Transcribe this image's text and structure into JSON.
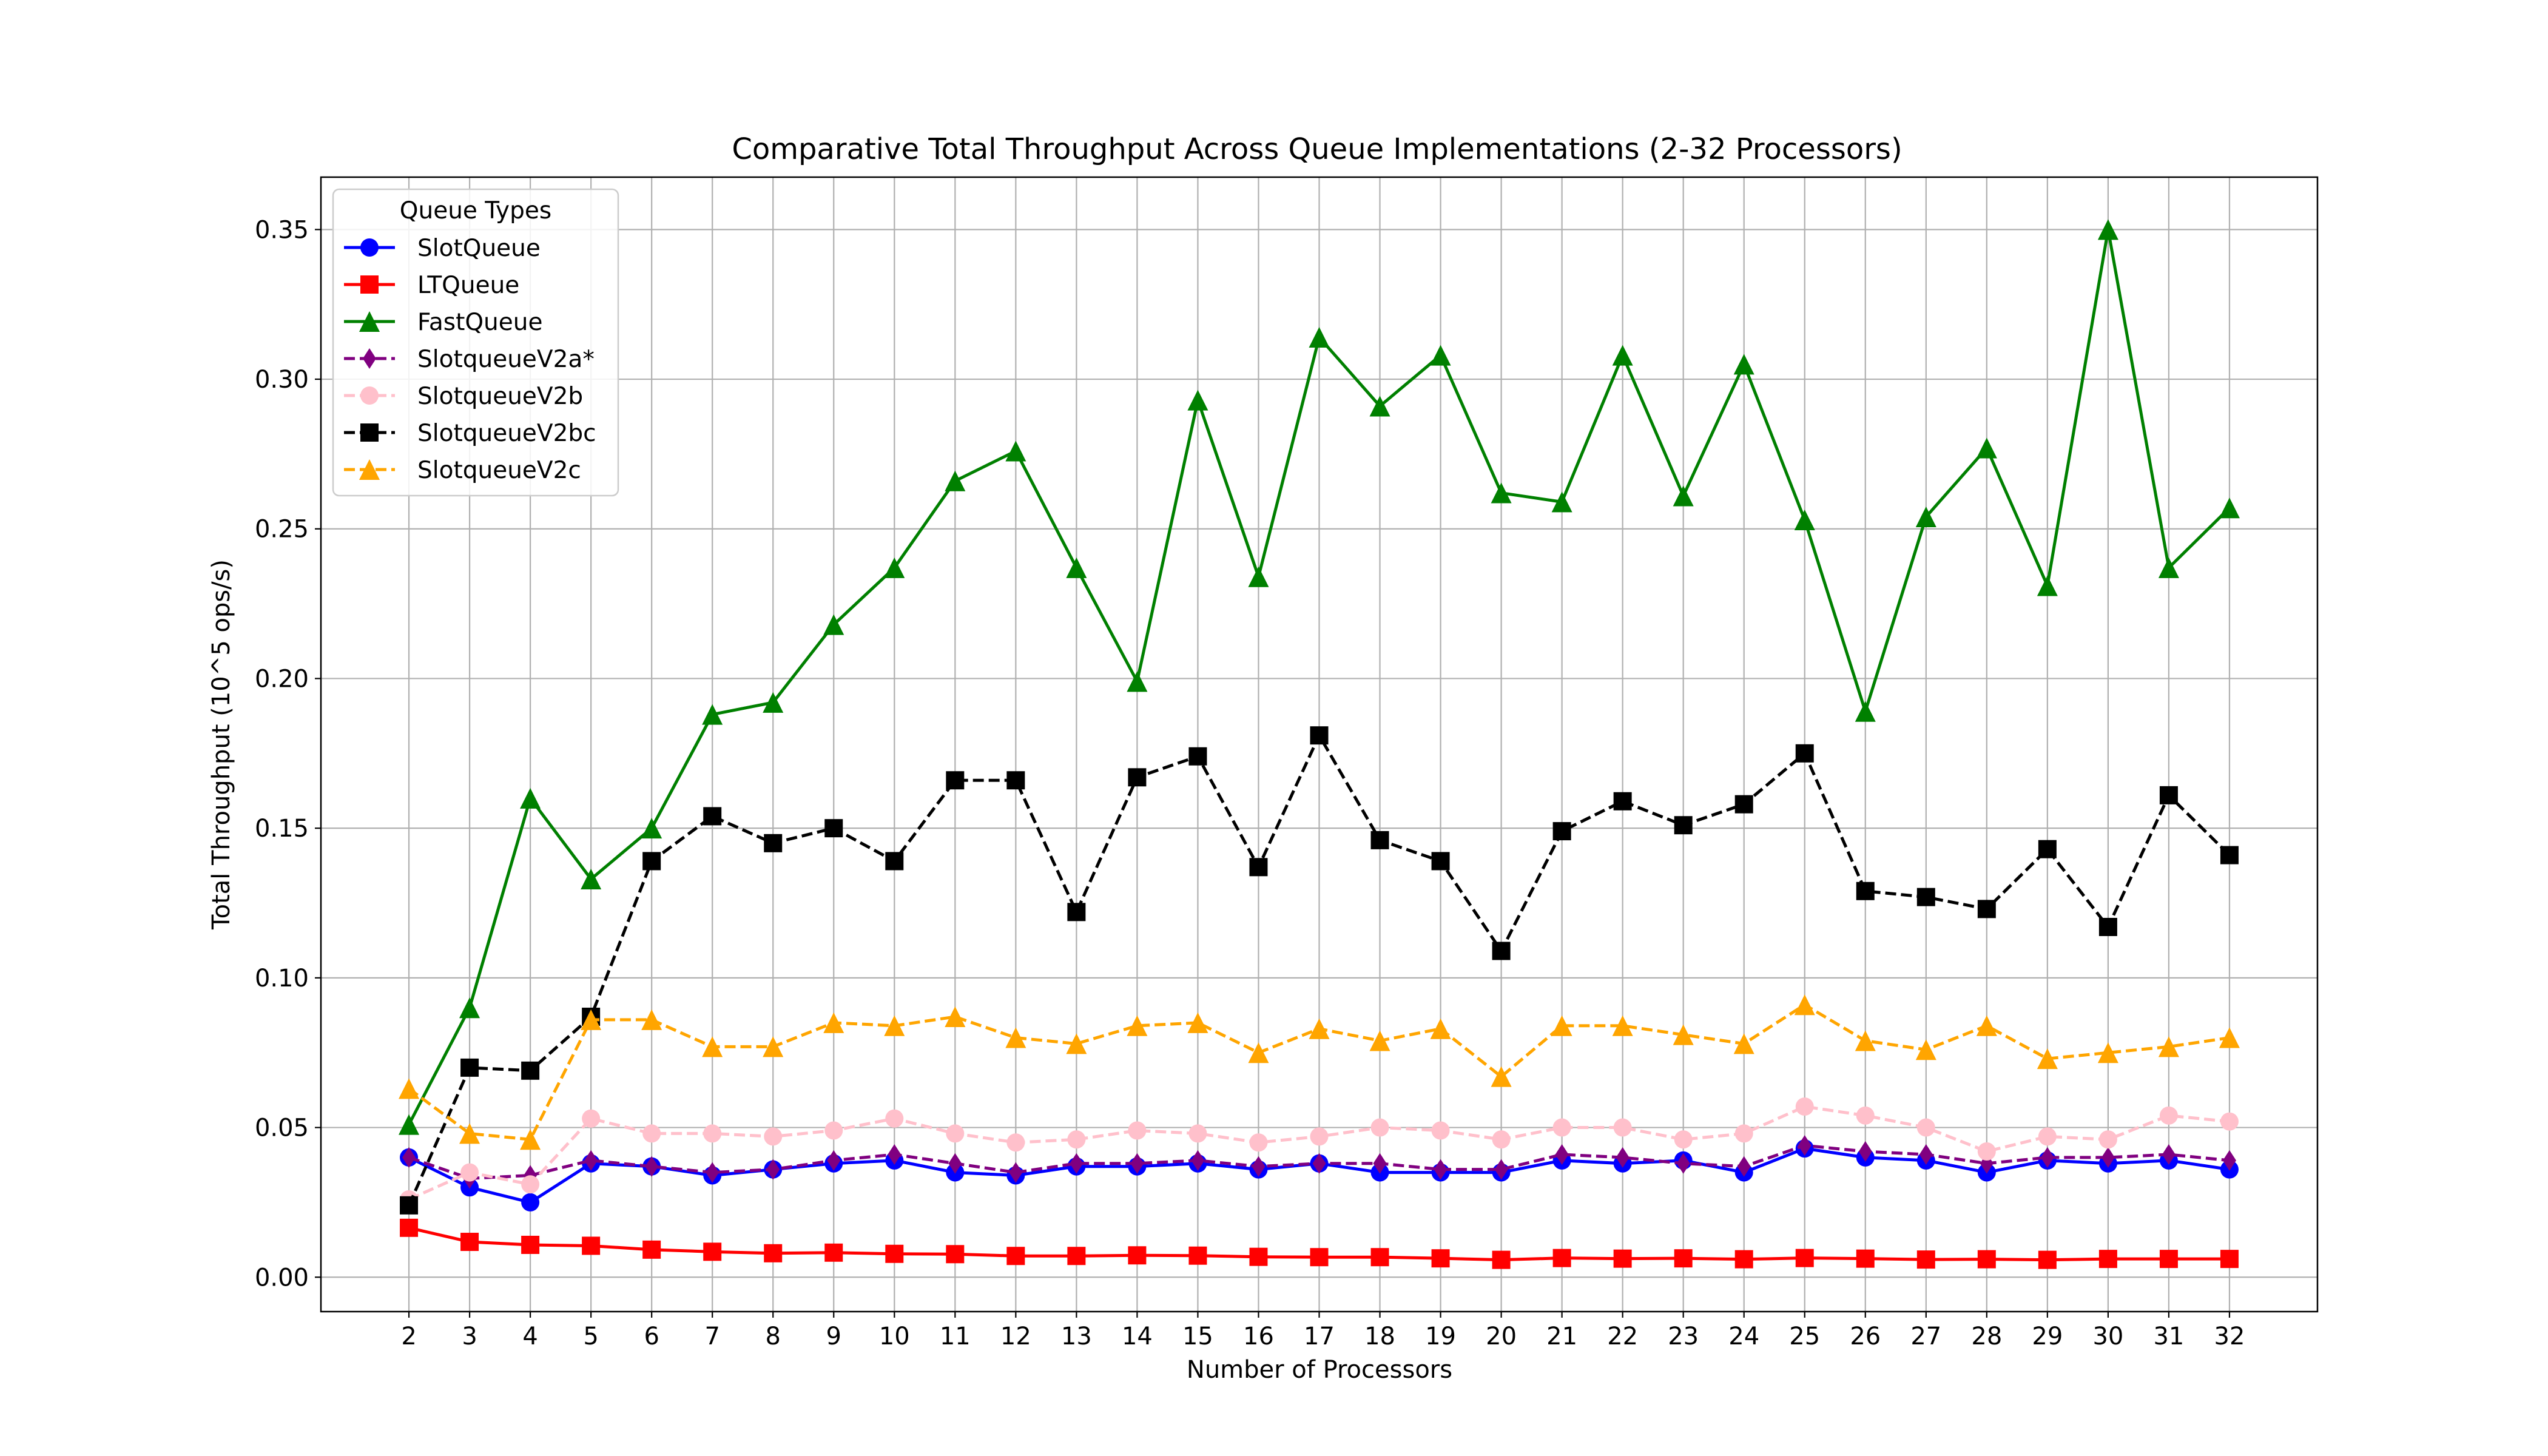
{
  "chart_data": {
    "type": "line",
    "title": "Comparative Total Throughput Across Queue Implementations (2-32 Processors)",
    "xlabel": "Number of Processors",
    "ylabel": "Total Throughput (10^5 ops/s)",
    "x": [
      2,
      3,
      4,
      5,
      6,
      7,
      8,
      9,
      10,
      11,
      12,
      13,
      14,
      15,
      16,
      17,
      18,
      19,
      20,
      21,
      22,
      23,
      24,
      25,
      26,
      27,
      28,
      29,
      30,
      31,
      32
    ],
    "xlim": [
      0.55,
      33.45
    ],
    "ylim": [
      -0.0115,
      0.3675
    ],
    "yticks": [
      0.0,
      0.05,
      0.1,
      0.15,
      0.2,
      0.25,
      0.3,
      0.35
    ],
    "ytick_labels": [
      "0.00",
      "0.05",
      "0.10",
      "0.15",
      "0.20",
      "0.25",
      "0.30",
      "0.35"
    ],
    "grid": true,
    "legend": {
      "title": "Queue Types",
      "placement": "upper-left"
    },
    "series": [
      {
        "name": "SlotQueue",
        "color": "#0000ff",
        "linestyle": "solid",
        "marker": "circle",
        "values": [
          0.04,
          0.03,
          0.025,
          0.038,
          0.037,
          0.034,
          0.036,
          0.038,
          0.039,
          0.035,
          0.034,
          0.037,
          0.037,
          0.038,
          0.036,
          0.038,
          0.035,
          0.035,
          0.035,
          0.039,
          0.038,
          0.039,
          0.035,
          0.043,
          0.04,
          0.039,
          0.035,
          0.039,
          0.038,
          0.039,
          0.036
        ]
      },
      {
        "name": "LTQueue",
        "color": "#ff0000",
        "linestyle": "solid",
        "marker": "square",
        "values": [
          0.0165,
          0.0118,
          0.0108,
          0.0105,
          0.0092,
          0.0085,
          0.008,
          0.0082,
          0.0078,
          0.0077,
          0.0071,
          0.0071,
          0.0073,
          0.0072,
          0.0068,
          0.0067,
          0.0067,
          0.0063,
          0.0058,
          0.0064,
          0.0062,
          0.0063,
          0.006,
          0.0064,
          0.0062,
          0.0059,
          0.006,
          0.0058,
          0.0061,
          0.0061,
          0.0061
        ]
      },
      {
        "name": "FastQueue",
        "color": "#008000",
        "linestyle": "solid",
        "marker": "triangle",
        "values": [
          0.051,
          0.09,
          0.16,
          0.133,
          0.15,
          0.188,
          0.192,
          0.218,
          0.237,
          0.266,
          0.276,
          0.237,
          0.199,
          0.293,
          0.234,
          0.314,
          0.291,
          0.308,
          0.262,
          0.259,
          0.308,
          0.261,
          0.305,
          0.253,
          0.189,
          0.254,
          0.277,
          0.231,
          0.35,
          0.237,
          0.257
        ]
      },
      {
        "name": "SlotqueueV2a*",
        "color": "#800080",
        "linestyle": "dashed",
        "marker": "diamond",
        "values": [
          0.04,
          0.033,
          0.034,
          0.039,
          0.037,
          0.035,
          0.036,
          0.039,
          0.041,
          0.038,
          0.035,
          0.038,
          0.038,
          0.039,
          0.037,
          0.038,
          0.038,
          0.036,
          0.036,
          0.041,
          0.04,
          0.038,
          0.037,
          0.044,
          0.042,
          0.041,
          0.038,
          0.04,
          0.04,
          0.041,
          0.039
        ]
      },
      {
        "name": "SlotqueueV2b",
        "color": "#ffc0cb",
        "linestyle": "dashed",
        "marker": "circle",
        "values": [
          0.026,
          0.035,
          0.031,
          0.053,
          0.048,
          0.048,
          0.047,
          0.049,
          0.053,
          0.048,
          0.045,
          0.046,
          0.049,
          0.048,
          0.045,
          0.047,
          0.05,
          0.049,
          0.046,
          0.05,
          0.05,
          0.046,
          0.048,
          0.057,
          0.054,
          0.05,
          0.042,
          0.047,
          0.046,
          0.054,
          0.052
        ]
      },
      {
        "name": "SlotqueueV2bc",
        "color": "#000000",
        "linestyle": "dashed",
        "marker": "square",
        "values": [
          0.024,
          0.07,
          0.069,
          0.087,
          0.139,
          0.154,
          0.145,
          0.15,
          0.139,
          0.166,
          0.166,
          0.122,
          0.167,
          0.174,
          0.137,
          0.181,
          0.146,
          0.139,
          0.109,
          0.149,
          0.159,
          0.151,
          0.158,
          0.175,
          0.129,
          0.127,
          0.123,
          0.143,
          0.117,
          0.161,
          0.141
        ]
      },
      {
        "name": "SlotqueueV2c",
        "color": "#ffa500",
        "linestyle": "dashed",
        "marker": "triangle",
        "values": [
          0.063,
          0.048,
          0.046,
          0.086,
          0.086,
          0.077,
          0.077,
          0.085,
          0.084,
          0.087,
          0.08,
          0.078,
          0.084,
          0.085,
          0.075,
          0.083,
          0.079,
          0.083,
          0.067,
          0.084,
          0.084,
          0.081,
          0.078,
          0.091,
          0.079,
          0.076,
          0.084,
          0.073,
          0.075,
          0.077,
          0.08
        ]
      }
    ]
  }
}
